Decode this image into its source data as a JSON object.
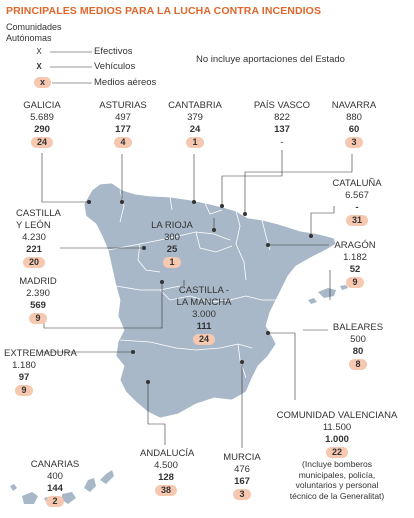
{
  "title": "PRINCIPALES MEDIOS PARA LA LUCHA CONTRA INCENDIOS",
  "legend": {
    "heading": "Comunidades Autónomas",
    "items": [
      {
        "symbol": "X",
        "label": "Efectivos"
      },
      {
        "symbol": "X",
        "label": "Vehículos"
      },
      {
        "symbol": "x",
        "label": "Medios aéreos"
      }
    ]
  },
  "note": "No incluye aportaciones del Estado",
  "colors": {
    "map_fill": "#a8b8c8",
    "map_stroke": "#ffffff",
    "pill": "#f6c8b0",
    "title": "#e0662b"
  },
  "regions": {
    "galicia": {
      "name": "GALICIA",
      "efectivos": "5.689",
      "vehiculos": "290",
      "aereos": "24"
    },
    "asturias": {
      "name": "ASTURIAS",
      "efectivos": "497",
      "vehiculos": "177",
      "aereos": "4"
    },
    "cantabria": {
      "name": "CANTABRIA",
      "efectivos": "379",
      "vehiculos": "24",
      "aereos": "1"
    },
    "pais_vasco": {
      "name": "PAÍS VASCO",
      "efectivos": "822",
      "vehiculos": "137",
      "aereos": "-"
    },
    "navarra": {
      "name": "NAVARRA",
      "efectivos": "880",
      "vehiculos": "60",
      "aereos": "3"
    },
    "cataluna": {
      "name": "CATALUÑA",
      "efectivos": "6.567",
      "vehiculos": "-",
      "aereos": "31"
    },
    "castilla_leon": {
      "name_1": "CASTILLA",
      "name_2": "Y LEÓN",
      "efectivos": "4.230",
      "vehiculos": "221",
      "aereos": "20"
    },
    "la_rioja": {
      "name": "LA RIOJA",
      "efectivos": "300",
      "vehiculos": "25",
      "aereos": "1"
    },
    "aragon": {
      "name": "ARAGÓN",
      "efectivos": "1.182",
      "vehiculos": "52",
      "aereos": "9"
    },
    "madrid": {
      "name": "MADRID",
      "efectivos": "2.390",
      "vehiculos": "569",
      "aereos": "9"
    },
    "castilla_mancha": {
      "name_1": "CASTILLA -",
      "name_2": "LA MANCHA",
      "efectivos": "3.000",
      "vehiculos": "111",
      "aereos": "24"
    },
    "baleares": {
      "name": "BALEARES",
      "efectivos": "500",
      "vehiculos": "80",
      "aereos": "8"
    },
    "extremadura": {
      "name": "EXTREMADURA",
      "efectivos": "1.180",
      "vehiculos": "97",
      "aereos": "9"
    },
    "valenciana": {
      "name": "COMUNIDAD VALENCIANA",
      "efectivos": "11.500",
      "vehiculos": "1.000",
      "aereos": "22",
      "note_1": "(Incluye bomberos",
      "note_2": "municipales, policía,",
      "note_3": "voluntarios y personal",
      "note_4": "técnico de la Generalitat)"
    },
    "andalucia": {
      "name": "ANDALUCÍA",
      "efectivos": "4.500",
      "vehiculos": "128",
      "aereos": "38"
    },
    "murcia": {
      "name": "MURCIA",
      "efectivos": "476",
      "vehiculos": "167",
      "aereos": "3"
    },
    "canarias": {
      "name": "CANARIAS",
      "efectivos": "400",
      "vehiculos": "144",
      "aereos": "2"
    }
  }
}
